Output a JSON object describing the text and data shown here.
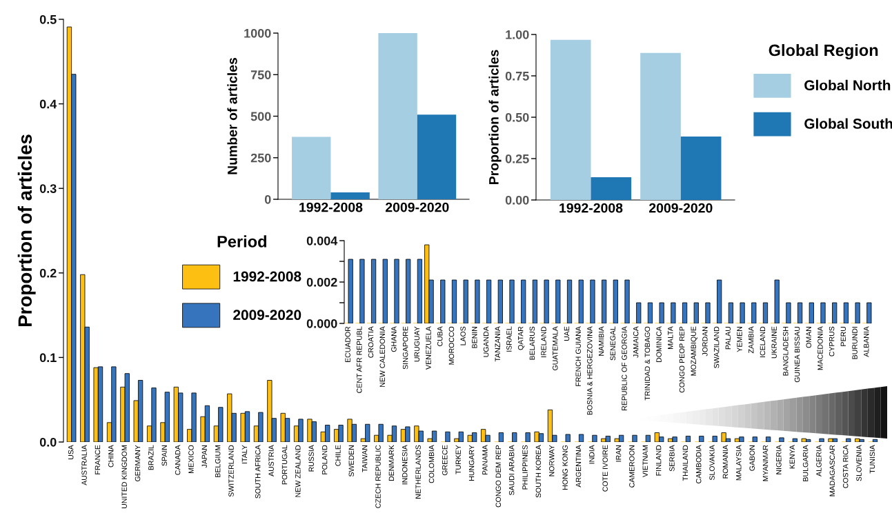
{
  "chart_data": [
    {
      "type": "bar",
      "ylabel": "Proportion of articles",
      "legend_title": "Period",
      "legend": "left",
      "grid": false,
      "categories": [
        "USA",
        "AUSTRALIA",
        "FRANCE",
        "CHINA",
        "UNITED KINGDOM",
        "GERMANY",
        "BRAZIL",
        "SPAIN",
        "CANADA",
        "MEXICO",
        "JAPAN",
        "BELGIUM",
        "SWITZERLAND",
        "ITALY",
        "SOUTH AFRICA",
        "AUSTRIA",
        "PORTUGAL",
        "NEW ZEALAND",
        "RUSSIA",
        "POLAND",
        "CHILE",
        "SWEDEN",
        "TAIWAN",
        "CZECH REPUBLIC",
        "DENMARK",
        "INDONESIA",
        "NETHERLANDS",
        "COLOMBIA",
        "GREECE",
        "TURKEY",
        "HUNGARY",
        "PANAMA",
        "CONGO DEM REP",
        "SAUDI ARABIA",
        "PHILIPPINES",
        "SOUTH KOREA",
        "NORWAY",
        "HONG KONG",
        "ARGENTINA",
        "INDIA",
        "COTE IVOIRE",
        "IRAN",
        "CAMEROON",
        "VIETNAM",
        "FINLAND",
        "SERBIA",
        "THAILAND",
        "CAMBODIA",
        "SLOVAKIA",
        "ROMANIA",
        "MALAYSIA",
        "GABON",
        "MYANMAR",
        "NIGERIA",
        "KENYA",
        "BULGARIA",
        "ALGERIA",
        "MADAGASCAR",
        "COSTA RICA",
        "SLOVENIA",
        "TUNISIA"
      ],
      "series": [
        {
          "name": "1992-2008",
          "color": "#fdbf11",
          "values": [
            0.491,
            0.198,
            0.088,
            0.023,
            0.065,
            0.049,
            0.019,
            0.023,
            0.065,
            0.015,
            0.03,
            0.019,
            0.057,
            0.034,
            0.019,
            0.073,
            0.034,
            0.019,
            0.027,
            0.012,
            0.015,
            0.027,
            0.004,
            0.008,
            0.008,
            0.015,
            0.019,
            0.004,
            0,
            0.004,
            0.008,
            0.015,
            0,
            0,
            0,
            0.012,
            0.038,
            0,
            0,
            0,
            0.004,
            0.004,
            0,
            0,
            0.011,
            0.004,
            0,
            0,
            0,
            0.011,
            0.004,
            0,
            0,
            0,
            0,
            0.004,
            0,
            0.004,
            0,
            0.004,
            0
          ]
        },
        {
          "name": "2009-2020",
          "color": "#3674be",
          "values": [
            0.435,
            0.136,
            0.089,
            0.089,
            0.081,
            0.073,
            0.064,
            0.059,
            0.058,
            0.058,
            0.043,
            0.041,
            0.034,
            0.036,
            0.035,
            0.028,
            0.028,
            0.027,
            0.024,
            0.02,
            0.02,
            0.021,
            0.021,
            0.021,
            0.019,
            0.018,
            0.013,
            0.013,
            0.012,
            0.012,
            0.011,
            0.008,
            0.011,
            0.011,
            0.011,
            0.01,
            0.008,
            0.009,
            0.009,
            0.008,
            0.007,
            0.008,
            0.008,
            0.008,
            0.006,
            0.006,
            0.007,
            0.007,
            0.007,
            0.004,
            0.006,
            0.006,
            0.006,
            0.005,
            0.004,
            0.003,
            0.004,
            0.004,
            0.004,
            0.003,
            0.003
          ]
        }
      ],
      "ylim": [
        0,
        0.5
      ],
      "yticks": [
        {
          "value": 0,
          "label": "0.0"
        },
        0.1,
        0.2,
        0.3,
        0.4,
        0.5
      ]
    },
    {
      "type": "bar",
      "ylabel": "Number of articles",
      "grid": false,
      "categories": [
        "1992-2008",
        "2009-2020"
      ],
      "series": [
        {
          "color": "#a6cee3",
          "values": [
            376,
            1000
          ]
        },
        {
          "color": "#1f78b4",
          "values": [
            42,
            509
          ]
        }
      ],
      "ylim": [
        0,
        1000
      ],
      "yticks": [
        0,
        250,
        500,
        750,
        1000
      ]
    },
    {
      "type": "bar",
      "ylabel": "Proportion of articles",
      "legend_title": "Global Region",
      "legend": "right",
      "grid": false,
      "categories": [
        "1992-2008",
        "2009-2020"
      ],
      "series": [
        {
          "name": "Global North",
          "color": "#a6cee3",
          "values": [
            0.968,
            0.889
          ]
        },
        {
          "name": "Global South",
          "color": "#1f78b4",
          "values": [
            0.137,
            0.383
          ]
        }
      ],
      "ylim": [
        0,
        1
      ],
      "yticks": [
        {
          "value": 0,
          "label": "0.00"
        },
        {
          "value": 0.25,
          "label": "0.25"
        },
        {
          "value": 0.5,
          "label": "0.50"
        },
        {
          "value": 0.75,
          "label": "0.75"
        },
        {
          "value": 1,
          "label": "1.00"
        }
      ]
    },
    {
      "type": "bar",
      "grid": false,
      "categories": [
        "ECUADOR",
        "CENT AFR REPUBL",
        "CROATIA",
        "NEW CALEDONIA",
        "GHANA",
        "SINGAPORE",
        "URUGUAY",
        "VENEZUELA",
        "CUBA",
        "MOROCCO",
        "LAOS",
        "BENIN",
        "UGANDA",
        "TANZANIA",
        "ISRAEL",
        "QATAR",
        "BELARUS",
        "IRELAND",
        "GUATEMALA",
        "UAE",
        "FRENCH GUIANA",
        "BOSNIA & HERGEZOVINA",
        "NAMIBIA",
        "SENEGAL",
        "REPUBLIC OF GEORGIA",
        "JAMAICA",
        "TRINIDAD & TOBAGO",
        "DOMINICA",
        "MALTA",
        "CONGO PEOP REP",
        "MOZAMBIQUE",
        "JORDAN",
        "SWAZILAND",
        "PALAU",
        "YEMEN",
        "ZAMBIA",
        "ICELAND",
        "UKRAINE",
        "BANGLADESH",
        "GUINEA BISSAU",
        "OMAN",
        "MACEDONIA",
        "CYPRUS",
        "PERU",
        "BURUNDI",
        "ALBANIA"
      ],
      "series": [
        {
          "color": "#fdbf11",
          "values": [
            0,
            0,
            0,
            0,
            0,
            0,
            0,
            0.0038,
            0,
            0,
            0,
            0,
            0,
            0,
            0,
            0,
            0,
            0,
            0,
            0,
            0,
            0,
            0,
            0,
            0,
            0,
            0,
            0,
            0,
            0,
            0,
            0,
            0,
            0,
            0,
            0,
            0,
            0,
            0,
            0,
            0,
            0,
            0,
            0,
            0,
            0
          ]
        },
        {
          "color": "#3674be",
          "values": [
            0.0031,
            0.0031,
            0.0031,
            0.0031,
            0.0031,
            0.0031,
            0.0031,
            0.0021,
            0.0021,
            0.0021,
            0.0021,
            0.0021,
            0.0021,
            0.0021,
            0.0021,
            0.0021,
            0.0021,
            0.0021,
            0.0021,
            0.0021,
            0.0021,
            0.0021,
            0.0021,
            0.0021,
            0.0021,
            0.001,
            0.001,
            0.001,
            0.001,
            0.001,
            0.001,
            0.001,
            0.0021,
            0.001,
            0.001,
            0.001,
            0.001,
            0.0021,
            0.001,
            0.001,
            0.001,
            0.001,
            0.001,
            0.001,
            0.001,
            0.001
          ]
        }
      ],
      "ylim": [
        0,
        0.004
      ],
      "yticks": [
        {
          "value": 0,
          "label": "0.000"
        },
        {
          "value": 0.001,
          "label": null
        },
        {
          "value": 0.002,
          "label": "0.002"
        },
        {
          "value": 0.003,
          "label": null
        },
        {
          "value": 0.004,
          "label": "0.004"
        }
      ]
    }
  ]
}
